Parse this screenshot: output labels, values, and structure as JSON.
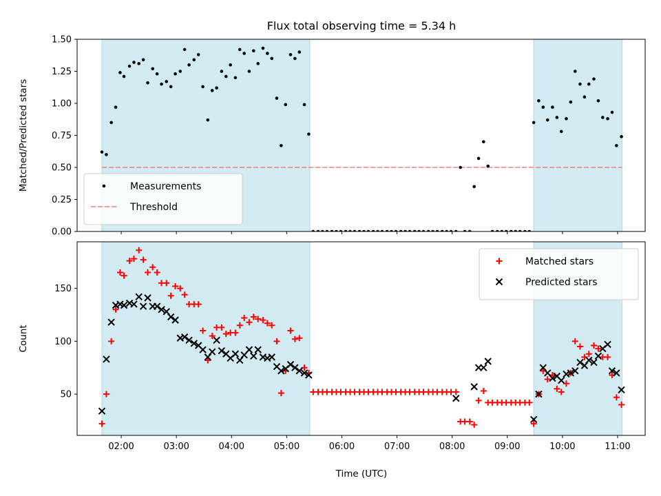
{
  "chart_data": {
    "type": "scatter",
    "title": "Flux total observing time = 5.34 h",
    "xlabel": "Time (UTC)",
    "x_unit": "hours UTC (decimal)",
    "xlim": [
      1.2,
      11.5
    ],
    "x_ticks": [
      2,
      3,
      4,
      5,
      6,
      7,
      8,
      9,
      10,
      11
    ],
    "x_tick_labels": [
      "02:00",
      "03:00",
      "04:00",
      "05:00",
      "06:00",
      "07:00",
      "08:00",
      "09:00",
      "10:00",
      "11:00"
    ],
    "shaded_intervals": [
      [
        1.65,
        5.42
      ],
      [
        9.48,
        11.08
      ]
    ],
    "shade_color": "#add8e6",
    "panels": [
      {
        "ylabel": "Matched/Predicted stars",
        "ylim": [
          0,
          1.5
        ],
        "y_ticks": [
          0,
          0.25,
          0.5,
          0.75,
          1.0,
          1.25,
          1.5
        ],
        "y_tick_labels": [
          "0.00",
          "0.25",
          "0.50",
          "0.75",
          "1.00",
          "1.25",
          "1.50"
        ],
        "legend": "lower-left",
        "threshold": {
          "name": "Threshold",
          "value": 0.5,
          "color": "#f08080",
          "style": "dashed"
        },
        "series": [
          {
            "name": "Measurements",
            "marker": "dot",
            "color": "#000000",
            "x": [
              1.65,
              1.73,
              1.82,
              1.9,
              1.98,
              2.05,
              2.15,
              2.23,
              2.32,
              2.4,
              2.48,
              2.57,
              2.65,
              2.73,
              2.82,
              2.9,
              2.98,
              3.07,
              3.15,
              3.23,
              3.32,
              3.4,
              3.48,
              3.57,
              3.65,
              3.73,
              3.82,
              3.9,
              3.98,
              4.07,
              4.15,
              4.23,
              4.32,
              4.4,
              4.48,
              4.57,
              4.65,
              4.73,
              4.82,
              4.9,
              4.98,
              5.07,
              5.15,
              5.23,
              5.32,
              5.4,
              5.48,
              5.57,
              5.65,
              5.73,
              5.82,
              5.9,
              5.98,
              6.07,
              6.15,
              6.23,
              6.32,
              6.4,
              6.48,
              6.57,
              6.65,
              6.73,
              6.82,
              6.9,
              6.98,
              7.07,
              7.15,
              7.23,
              7.32,
              7.4,
              7.48,
              7.57,
              7.65,
              7.73,
              7.82,
              7.9,
              7.98,
              8.07,
              8.15,
              8.23,
              8.32,
              8.4,
              8.48,
              8.57,
              8.65,
              8.73,
              8.82,
              8.9,
              8.98,
              9.07,
              9.15,
              9.23,
              9.32,
              9.4,
              9.48,
              9.57,
              9.65,
              9.73,
              9.82,
              9.9,
              9.98,
              10.07,
              10.15,
              10.23,
              10.32,
              10.4,
              10.48,
              10.57,
              10.65,
              10.73,
              10.82,
              10.9,
              10.98,
              11.07
            ],
            "y": [
              0.62,
              0.6,
              0.85,
              0.97,
              1.24,
              1.21,
              1.29,
              1.32,
              1.31,
              1.34,
              1.16,
              1.27,
              1.23,
              1.15,
              1.17,
              1.13,
              1.23,
              1.25,
              1.42,
              1.3,
              1.34,
              1.38,
              1.13,
              0.87,
              1.1,
              1.12,
              1.25,
              1.21,
              1.3,
              1.2,
              1.42,
              1.39,
              1.25,
              1.41,
              1.31,
              1.43,
              1.39,
              1.35,
              1.04,
              0.67,
              0.99,
              1.38,
              1.35,
              1.4,
              0.99,
              0.76,
              0,
              0,
              0,
              0,
              0,
              0,
              0,
              0,
              0,
              0,
              0,
              0,
              0,
              0,
              0,
              0,
              0,
              0,
              0,
              0,
              0,
              0,
              0,
              0,
              0,
              0,
              0,
              0,
              0,
              0,
              0,
              0,
              0.5,
              0,
              0,
              0.35,
              0.57,
              0.7,
              0.51,
              0,
              0,
              0,
              0,
              0,
              0,
              0,
              0,
              0,
              0.85,
              1.02,
              0.97,
              0.87,
              0.97,
              0.89,
              0.78,
              0.88,
              1.01,
              1.25,
              1.15,
              1.05,
              1.15,
              1.19,
              1.02,
              0.89,
              0.88,
              0.93,
              0.67,
              0.74
            ]
          }
        ]
      },
      {
        "ylabel": "Count",
        "ylim": [
          11,
          194
        ],
        "y_ticks": [
          50,
          100,
          150
        ],
        "y_tick_labels": [
          "50",
          "100",
          "150"
        ],
        "legend": "top-right",
        "series": [
          {
            "name": "Matched stars",
            "marker": "plus",
            "color": "#ff0000",
            "x": [
              1.65,
              1.73,
              1.82,
              1.9,
              1.98,
              2.05,
              2.15,
              2.23,
              2.32,
              2.4,
              2.48,
              2.57,
              2.65,
              2.73,
              2.82,
              2.9,
              2.98,
              3.07,
              3.15,
              3.23,
              3.32,
              3.4,
              3.48,
              3.57,
              3.65,
              3.73,
              3.82,
              3.9,
              3.98,
              4.07,
              4.15,
              4.23,
              4.32,
              4.4,
              4.48,
              4.57,
              4.65,
              4.73,
              4.82,
              4.9,
              4.98,
              5.07,
              5.15,
              5.23,
              5.32,
              5.4,
              5.48,
              5.57,
              5.65,
              5.73,
              5.82,
              5.9,
              5.98,
              6.07,
              6.15,
              6.23,
              6.32,
              6.4,
              6.48,
              6.57,
              6.65,
              6.73,
              6.82,
              6.9,
              6.98,
              7.07,
              7.15,
              7.23,
              7.32,
              7.4,
              7.48,
              7.57,
              7.65,
              7.73,
              7.82,
              7.9,
              7.98,
              8.07,
              8.15,
              8.23,
              8.32,
              8.4,
              8.48,
              8.57,
              8.65,
              8.73,
              8.82,
              8.9,
              8.98,
              9.07,
              9.15,
              9.23,
              9.32,
              9.4,
              9.48,
              9.57,
              9.65,
              9.73,
              9.82,
              9.9,
              9.98,
              10.07,
              10.15,
              10.23,
              10.32,
              10.4,
              10.48,
              10.57,
              10.65,
              10.73,
              10.82,
              10.9,
              10.98,
              11.07
            ],
            "y": [
              22,
              50,
              100,
              130,
              165,
              162,
              176,
              178,
              186,
              177,
              165,
              170,
              165,
              155,
              155,
              143,
              152,
              150,
              144,
              135,
              135,
              135,
              110,
              82,
              105,
              113,
              113,
              107,
              108,
              108,
              115,
              122,
              118,
              123,
              121,
              120,
              117,
              115,
              100,
              51,
              72,
              110,
              102,
              103,
              75,
              70,
              52,
              52,
              52,
              52,
              52,
              52,
              52,
              52,
              52,
              52,
              52,
              52,
              52,
              52,
              52,
              52,
              52,
              52,
              52,
              52,
              52,
              52,
              52,
              52,
              52,
              52,
              52,
              52,
              52,
              52,
              52,
              52,
              24,
              24,
              24,
              21,
              44,
              53,
              42,
              42,
              42,
              42,
              42,
              42,
              42,
              42,
              42,
              42,
              22,
              50,
              72,
              64,
              68,
              55,
              52,
              60,
              70,
              100,
              95,
              85,
              88,
              96,
              93,
              85,
              85,
              68,
              47,
              40
            ]
          },
          {
            "name": "Predicted stars",
            "marker": "x",
            "color": "#000000",
            "x": [
              1.65,
              1.73,
              1.82,
              1.9,
              1.98,
              2.05,
              2.15,
              2.23,
              2.32,
              2.4,
              2.48,
              2.57,
              2.65,
              2.73,
              2.82,
              2.9,
              2.98,
              3.07,
              3.15,
              3.23,
              3.32,
              3.4,
              3.48,
              3.57,
              3.65,
              3.73,
              3.82,
              3.9,
              3.98,
              4.07,
              4.15,
              4.23,
              4.32,
              4.4,
              4.48,
              4.57,
              4.65,
              4.73,
              4.82,
              4.9,
              4.98,
              5.07,
              5.15,
              5.23,
              5.32,
              5.4,
              8.07,
              8.4,
              8.48,
              8.57,
              8.65,
              9.48,
              9.57,
              9.65,
              9.73,
              9.82,
              9.9,
              9.98,
              10.07,
              10.15,
              10.23,
              10.32,
              10.4,
              10.48,
              10.57,
              10.65,
              10.73,
              10.82,
              10.9,
              10.98,
              11.07
            ],
            "y": [
              34,
              83,
              118,
              134,
              135,
              134,
              136,
              135,
              142,
              133,
              141,
              133,
              133,
              130,
              128,
              123,
              120,
              103,
              104,
              101,
              98,
              96,
              92,
              85,
              90,
              101,
              91,
              88,
              84,
              88,
              82,
              87,
              92,
              86,
              92,
              85,
              84,
              85,
              76,
              72,
              74,
              78,
              75,
              72,
              70,
              68,
              46,
              57,
              75,
              75,
              81,
              26,
              50,
              75,
              70,
              65,
              67,
              63,
              69,
              70,
              72,
              80,
              77,
              82,
              80,
              86,
              93,
              97,
              72,
              70,
              54
            ]
          }
        ]
      }
    ]
  }
}
